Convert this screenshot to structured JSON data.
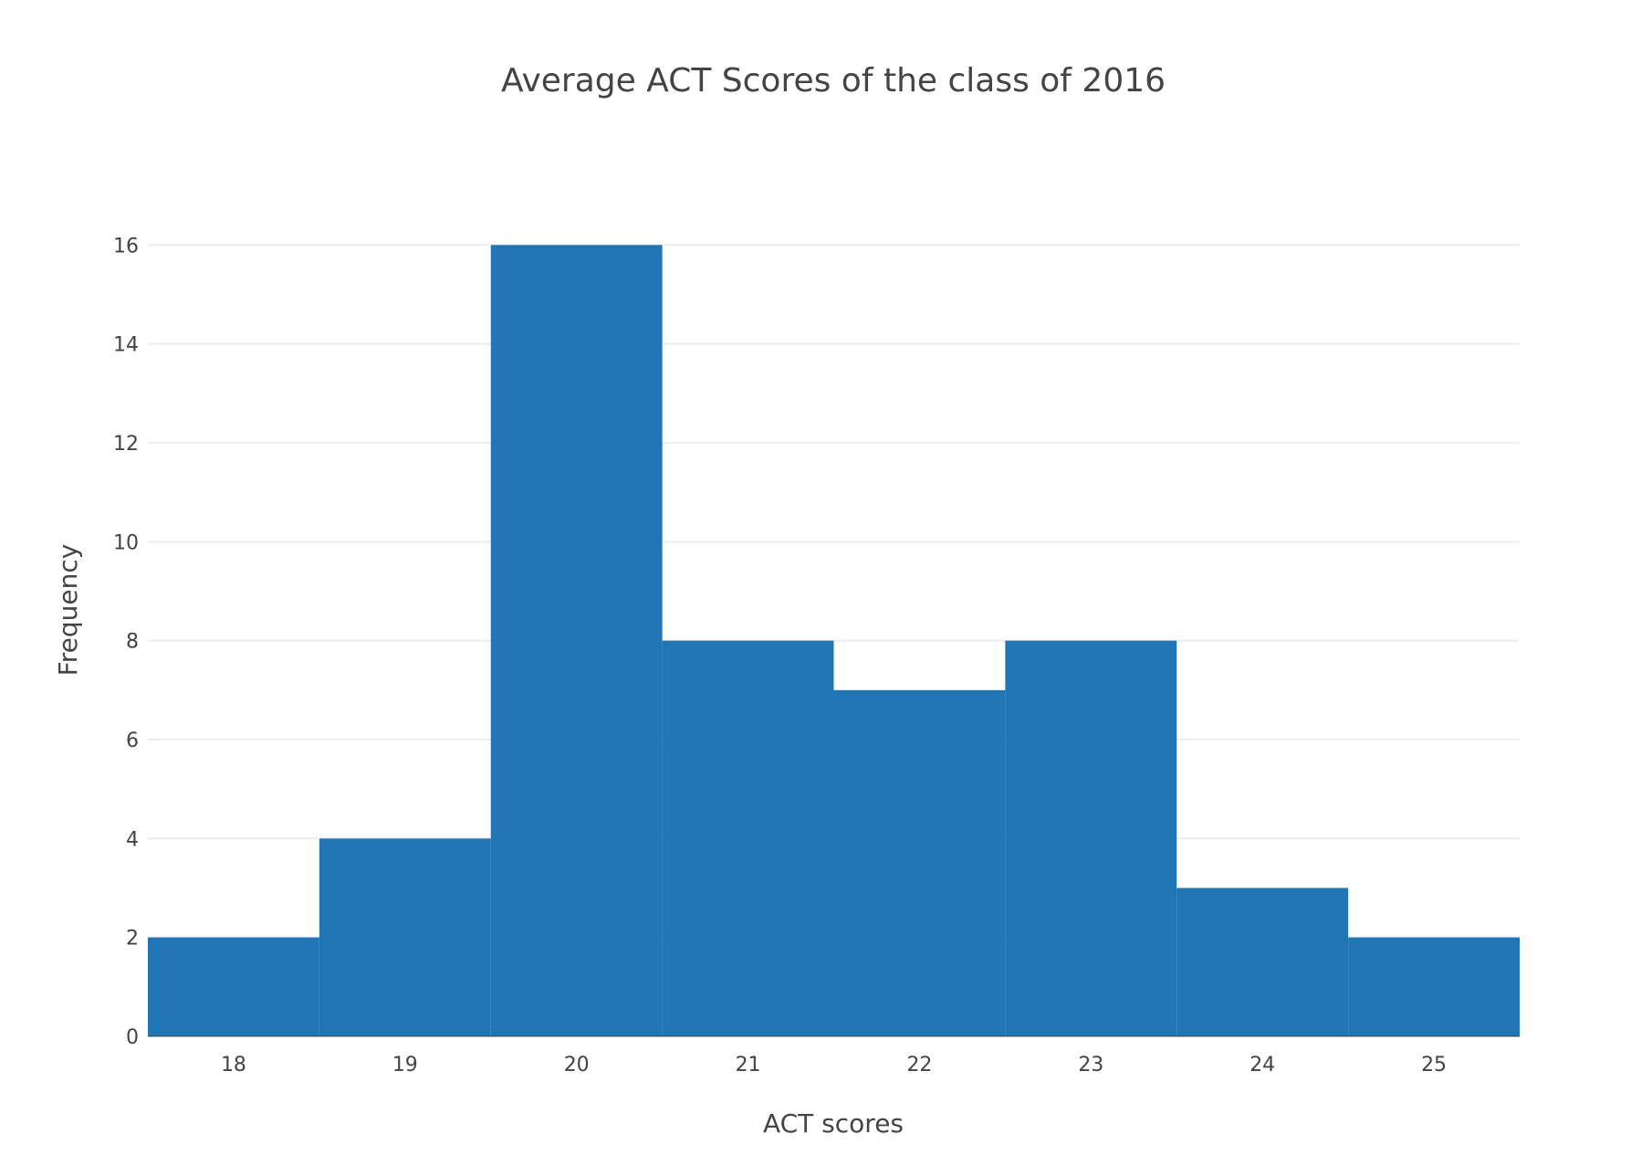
{
  "chart_data": {
    "type": "bar",
    "title": "Average ACT Scores of the class of 2016",
    "xlabel": "ACT scores",
    "ylabel": "Frequency",
    "categories": [
      "18",
      "19",
      "20",
      "21",
      "22",
      "23",
      "24",
      "25"
    ],
    "x": [
      18,
      19,
      20,
      21,
      22,
      23,
      24,
      25
    ],
    "values": [
      2,
      4,
      16,
      8,
      7,
      8,
      3,
      2
    ],
    "bin_width": 1,
    "xlim": [
      17.5,
      25.5
    ],
    "ylim": [
      0,
      16.8
    ],
    "yticks": [
      0,
      2,
      4,
      6,
      8,
      10,
      12,
      14,
      16
    ],
    "grid": true,
    "legend": "none",
    "bar_color": "#2077b4",
    "grid_color": "#eeeeee",
    "text_color": "#444444"
  }
}
